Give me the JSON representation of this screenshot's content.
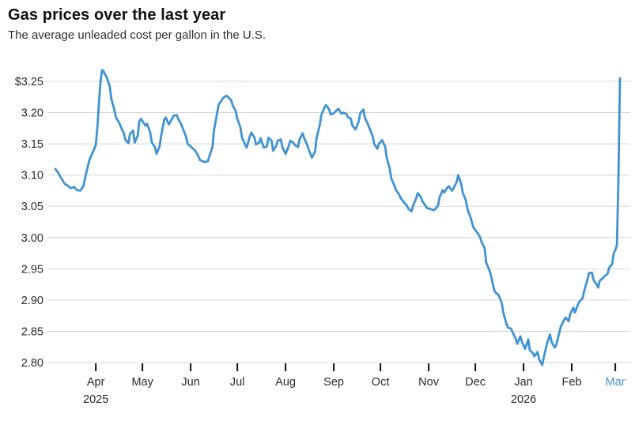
{
  "header": {
    "title": "Gas prices over the last year",
    "subtitle": "The average unleaded cost per gallon in the U.S."
  },
  "chart_data": {
    "type": "line",
    "title": "Gas prices over the last year",
    "subtitle": "The average unleaded cost per gallon in the U.S.",
    "unit": "USD per gallon",
    "legend": "none",
    "grid": true,
    "colors": {
      "line": "#3f93d2",
      "grid": "#d6d6d6",
      "axis_text": "#2b2b2b",
      "tick_mark": "#111111",
      "highlight_month": "#3f93d2",
      "background": "#ffffff"
    },
    "y_axis": {
      "min": 2.8,
      "max": 3.25,
      "step": 0.05,
      "tick_labels": [
        "$3.25",
        "3.20",
        "3.15",
        "3.10",
        "3.05",
        "3.00",
        "2.95",
        "2.90",
        "2.85",
        "2.80"
      ]
    },
    "x_axis": {
      "type": "time",
      "range": [
        "2025-03-06",
        "2026-03-04"
      ],
      "ticks": [
        {
          "date": "2025-04-01",
          "label": "Apr",
          "year": "2025"
        },
        {
          "date": "2025-05-01",
          "label": "May"
        },
        {
          "date": "2025-06-01",
          "label": "Jun"
        },
        {
          "date": "2025-07-01",
          "label": "Jul"
        },
        {
          "date": "2025-08-01",
          "label": "Aug"
        },
        {
          "date": "2025-09-01",
          "label": "Sep"
        },
        {
          "date": "2025-10-01",
          "label": "Oct"
        },
        {
          "date": "2025-11-01",
          "label": "Nov"
        },
        {
          "date": "2025-12-01",
          "label": "Dec"
        },
        {
          "date": "2026-01-01",
          "label": "Jan",
          "year": "2026"
        },
        {
          "date": "2026-02-01",
          "label": "Feb"
        },
        {
          "date": "2026-03-01",
          "label": "Mar",
          "highlight": true
        }
      ]
    },
    "series": [
      {
        "name": "Average U.S. unleaded price ($ per gallon)",
        "points": [
          [
            "2025-03-06",
            3.11
          ],
          [
            "2025-03-08",
            3.103
          ],
          [
            "2025-03-10",
            3.094
          ],
          [
            "2025-03-12",
            3.086
          ],
          [
            "2025-03-14",
            3.083
          ],
          [
            "2025-03-16",
            3.079
          ],
          [
            "2025-03-18",
            3.081
          ],
          [
            "2025-03-20",
            3.076
          ],
          [
            "2025-03-22",
            3.075
          ],
          [
            "2025-03-24",
            3.082
          ],
          [
            "2025-03-26",
            3.105
          ],
          [
            "2025-03-28",
            3.125
          ],
          [
            "2025-03-30",
            3.136
          ],
          [
            "2025-03-31",
            3.142
          ],
          [
            "2025-04-01",
            3.148
          ],
          [
            "2025-04-02",
            3.175
          ],
          [
            "2025-04-03",
            3.215
          ],
          [
            "2025-04-04",
            3.248
          ],
          [
            "2025-04-05",
            3.268
          ],
          [
            "2025-04-06",
            3.266
          ],
          [
            "2025-04-07",
            3.261
          ],
          [
            "2025-04-08",
            3.257
          ],
          [
            "2025-04-10",
            3.242
          ],
          [
            "2025-04-11",
            3.222
          ],
          [
            "2025-04-13",
            3.204
          ],
          [
            "2025-04-14",
            3.192
          ],
          [
            "2025-04-16",
            3.184
          ],
          [
            "2025-04-17",
            3.178
          ],
          [
            "2025-04-19",
            3.167
          ],
          [
            "2025-04-20",
            3.157
          ],
          [
            "2025-04-22",
            3.151
          ],
          [
            "2025-04-23",
            3.166
          ],
          [
            "2025-04-25",
            3.171
          ],
          [
            "2025-04-26",
            3.152
          ],
          [
            "2025-04-28",
            3.163
          ],
          [
            "2025-04-29",
            3.186
          ],
          [
            "2025-04-30",
            3.19
          ],
          [
            "2025-05-03",
            3.179
          ],
          [
            "2025-05-04",
            3.182
          ],
          [
            "2025-05-06",
            3.168
          ],
          [
            "2025-05-07",
            3.152
          ],
          [
            "2025-05-09",
            3.145
          ],
          [
            "2025-05-10",
            3.134
          ],
          [
            "2025-05-12",
            3.146
          ],
          [
            "2025-05-13",
            3.163
          ],
          [
            "2025-05-15",
            3.189
          ],
          [
            "2025-05-16",
            3.192
          ],
          [
            "2025-05-18",
            3.181
          ],
          [
            "2025-05-20",
            3.19
          ],
          [
            "2025-05-21",
            3.195
          ],
          [
            "2025-05-23",
            3.196
          ],
          [
            "2025-05-24",
            3.19
          ],
          [
            "2025-05-26",
            3.181
          ],
          [
            "2025-05-27",
            3.174
          ],
          [
            "2025-05-29",
            3.162
          ],
          [
            "2025-05-30",
            3.15
          ],
          [
            "2025-06-01",
            3.146
          ],
          [
            "2025-06-03",
            3.141
          ],
          [
            "2025-06-04",
            3.139
          ],
          [
            "2025-06-06",
            3.13
          ],
          [
            "2025-06-07",
            3.124
          ],
          [
            "2025-06-09",
            3.122
          ],
          [
            "2025-06-10",
            3.121
          ],
          [
            "2025-06-12",
            3.122
          ],
          [
            "2025-06-13",
            3.13
          ],
          [
            "2025-06-15",
            3.145
          ],
          [
            "2025-06-16",
            3.172
          ],
          [
            "2025-06-18",
            3.199
          ],
          [
            "2025-06-19",
            3.213
          ],
          [
            "2025-06-21",
            3.22
          ],
          [
            "2025-06-22",
            3.224
          ],
          [
            "2025-06-24",
            3.227
          ],
          [
            "2025-06-25",
            3.225
          ],
          [
            "2025-06-27",
            3.22
          ],
          [
            "2025-06-28",
            3.212
          ],
          [
            "2025-06-30",
            3.202
          ],
          [
            "2025-07-01",
            3.19
          ],
          [
            "2025-07-03",
            3.176
          ],
          [
            "2025-07-04",
            3.16
          ],
          [
            "2025-07-06",
            3.149
          ],
          [
            "2025-07-07",
            3.144
          ],
          [
            "2025-07-09",
            3.162
          ],
          [
            "2025-07-10",
            3.168
          ],
          [
            "2025-07-12",
            3.16
          ],
          [
            "2025-07-13",
            3.149
          ],
          [
            "2025-07-15",
            3.152
          ],
          [
            "2025-07-16",
            3.159
          ],
          [
            "2025-07-18",
            3.144
          ],
          [
            "2025-07-20",
            3.146
          ],
          [
            "2025-07-21",
            3.16
          ],
          [
            "2025-07-23",
            3.155
          ],
          [
            "2025-07-24",
            3.139
          ],
          [
            "2025-07-26",
            3.147
          ],
          [
            "2025-07-27",
            3.155
          ],
          [
            "2025-07-29",
            3.157
          ],
          [
            "2025-07-30",
            3.144
          ],
          [
            "2025-08-01",
            3.134
          ],
          [
            "2025-08-03",
            3.146
          ],
          [
            "2025-08-04",
            3.155
          ],
          [
            "2025-08-06",
            3.152
          ],
          [
            "2025-08-07",
            3.148
          ],
          [
            "2025-08-09",
            3.145
          ],
          [
            "2025-08-10",
            3.157
          ],
          [
            "2025-08-12",
            3.167
          ],
          [
            "2025-08-13",
            3.159
          ],
          [
            "2025-08-15",
            3.148
          ],
          [
            "2025-08-16",
            3.14
          ],
          [
            "2025-08-18",
            3.128
          ],
          [
            "2025-08-20",
            3.138
          ],
          [
            "2025-08-21",
            3.16
          ],
          [
            "2025-08-23",
            3.18
          ],
          [
            "2025-08-24",
            3.196
          ],
          [
            "2025-08-26",
            3.208
          ],
          [
            "2025-08-27",
            3.212
          ],
          [
            "2025-08-29",
            3.205
          ],
          [
            "2025-08-30",
            3.197
          ],
          [
            "2025-09-01",
            3.199
          ],
          [
            "2025-09-03",
            3.204
          ],
          [
            "2025-09-04",
            3.206
          ],
          [
            "2025-09-06",
            3.198
          ],
          [
            "2025-09-07",
            3.2
          ],
          [
            "2025-09-09",
            3.198
          ],
          [
            "2025-09-10",
            3.193
          ],
          [
            "2025-09-12",
            3.19
          ],
          [
            "2025-09-13",
            3.179
          ],
          [
            "2025-09-15",
            3.173
          ],
          [
            "2025-09-17",
            3.186
          ],
          [
            "2025-09-18",
            3.199
          ],
          [
            "2025-09-20",
            3.205
          ],
          [
            "2025-09-21",
            3.192
          ],
          [
            "2025-09-23",
            3.181
          ],
          [
            "2025-09-24",
            3.175
          ],
          [
            "2025-09-26",
            3.162
          ],
          [
            "2025-09-27",
            3.15
          ],
          [
            "2025-09-29",
            3.142
          ],
          [
            "2025-09-30",
            3.15
          ],
          [
            "2025-10-02",
            3.156
          ],
          [
            "2025-10-04",
            3.146
          ],
          [
            "2025-10-05",
            3.128
          ],
          [
            "2025-10-07",
            3.11
          ],
          [
            "2025-10-08",
            3.094
          ],
          [
            "2025-10-10",
            3.083
          ],
          [
            "2025-10-11",
            3.076
          ],
          [
            "2025-10-13",
            3.069
          ],
          [
            "2025-10-14",
            3.063
          ],
          [
            "2025-10-16",
            3.057
          ],
          [
            "2025-10-18",
            3.051
          ],
          [
            "2025-10-19",
            3.046
          ],
          [
            "2025-10-21",
            3.042
          ],
          [
            "2025-10-22",
            3.051
          ],
          [
            "2025-10-24",
            3.063
          ],
          [
            "2025-10-25",
            3.071
          ],
          [
            "2025-10-27",
            3.065
          ],
          [
            "2025-10-28",
            3.058
          ],
          [
            "2025-10-30",
            3.051
          ],
          [
            "2025-10-31",
            3.047
          ],
          [
            "2025-11-02",
            3.046
          ],
          [
            "2025-11-04",
            3.044
          ],
          [
            "2025-11-05",
            3.045
          ],
          [
            "2025-11-07",
            3.051
          ],
          [
            "2025-11-08",
            3.064
          ],
          [
            "2025-11-10",
            3.076
          ],
          [
            "2025-11-11",
            3.072
          ],
          [
            "2025-11-13",
            3.08
          ],
          [
            "2025-11-14",
            3.082
          ],
          [
            "2025-11-16",
            3.075
          ],
          [
            "2025-11-17",
            3.079
          ],
          [
            "2025-11-19",
            3.089
          ],
          [
            "2025-11-20",
            3.1
          ],
          [
            "2025-11-22",
            3.085
          ],
          [
            "2025-11-23",
            3.071
          ],
          [
            "2025-11-25",
            3.059
          ],
          [
            "2025-11-26",
            3.045
          ],
          [
            "2025-11-28",
            3.032
          ],
          [
            "2025-11-29",
            3.023
          ],
          [
            "2025-11-30",
            3.015
          ],
          [
            "2025-12-02",
            3.009
          ],
          [
            "2025-12-04",
            3.001
          ],
          [
            "2025-12-05",
            2.993
          ],
          [
            "2025-12-07",
            2.983
          ],
          [
            "2025-12-08",
            2.96
          ],
          [
            "2025-12-10",
            2.948
          ],
          [
            "2025-12-11",
            2.94
          ],
          [
            "2025-12-13",
            2.917
          ],
          [
            "2025-12-14",
            2.912
          ],
          [
            "2025-12-16",
            2.908
          ],
          [
            "2025-12-18",
            2.895
          ],
          [
            "2025-12-19",
            2.88
          ],
          [
            "2025-12-21",
            2.862
          ],
          [
            "2025-12-22",
            2.856
          ],
          [
            "2025-12-24",
            2.854
          ],
          [
            "2025-12-25",
            2.848
          ],
          [
            "2025-12-27",
            2.838
          ],
          [
            "2025-12-28",
            2.83
          ],
          [
            "2025-12-30",
            2.842
          ],
          [
            "2025-12-31",
            2.833
          ],
          [
            "2026-01-02",
            2.822
          ],
          [
            "2026-01-04",
            2.837
          ],
          [
            "2026-01-05",
            2.82
          ],
          [
            "2026-01-07",
            2.815
          ],
          [
            "2026-01-08",
            2.81
          ],
          [
            "2026-01-10",
            2.817
          ],
          [
            "2026-01-11",
            2.805
          ],
          [
            "2026-01-13",
            2.796
          ],
          [
            "2026-01-14",
            2.808
          ],
          [
            "2026-01-16",
            2.83
          ],
          [
            "2026-01-18",
            2.845
          ],
          [
            "2026-01-19",
            2.833
          ],
          [
            "2026-01-21",
            2.824
          ],
          [
            "2026-01-22",
            2.828
          ],
          [
            "2026-01-24",
            2.848
          ],
          [
            "2026-01-25",
            2.858
          ],
          [
            "2026-01-27",
            2.868
          ],
          [
            "2026-01-28",
            2.872
          ],
          [
            "2026-01-30",
            2.866
          ],
          [
            "2026-01-31",
            2.878
          ],
          [
            "2026-02-02",
            2.888
          ],
          [
            "2026-02-03",
            2.88
          ],
          [
            "2026-02-05",
            2.893
          ],
          [
            "2026-02-06",
            2.898
          ],
          [
            "2026-02-08",
            2.903
          ],
          [
            "2026-02-09",
            2.915
          ],
          [
            "2026-02-11",
            2.932
          ],
          [
            "2026-02-12",
            2.943
          ],
          [
            "2026-02-14",
            2.944
          ],
          [
            "2026-02-15",
            2.932
          ],
          [
            "2026-02-17",
            2.925
          ],
          [
            "2026-02-18",
            2.92
          ],
          [
            "2026-02-19",
            2.931
          ],
          [
            "2026-02-21",
            2.935
          ],
          [
            "2026-02-22",
            2.938
          ],
          [
            "2026-02-24",
            2.942
          ],
          [
            "2026-02-25",
            2.951
          ],
          [
            "2026-02-27",
            2.958
          ],
          [
            "2026-02-28",
            2.975
          ],
          [
            "2026-03-01",
            2.98
          ],
          [
            "2026-03-02",
            2.988
          ],
          [
            "2026-03-03",
            3.09
          ],
          [
            "2026-03-04",
            3.255
          ]
        ]
      }
    ]
  }
}
